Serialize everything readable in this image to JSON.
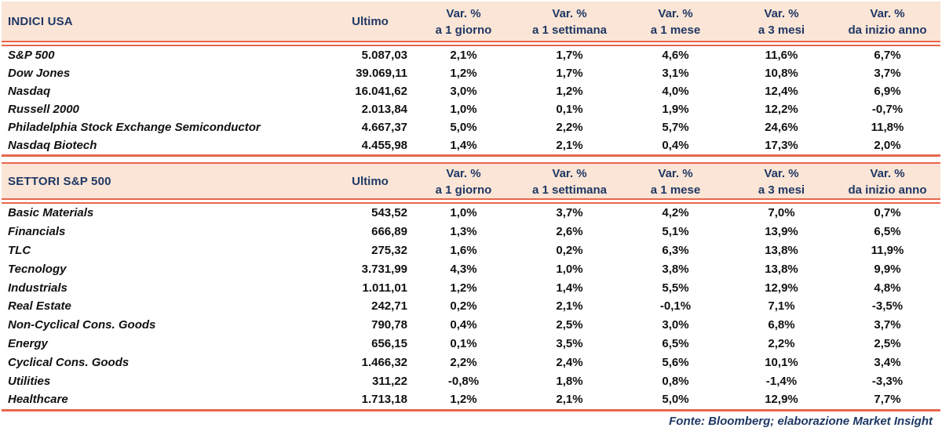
{
  "theme": {
    "accent_line_color": "#e8674c",
    "header_bg_color": "#fbe5d6",
    "header_text_color": "#1f3864",
    "body_text_color": "#111111"
  },
  "columns": {
    "ultimo": "Ultimo",
    "var_groups": [
      {
        "l1": "Var. %",
        "l2": "a 1 giorno"
      },
      {
        "l1": "Var. %",
        "l2": "a 1 settimana"
      },
      {
        "l1": "Var. %",
        "l2": "a 1 mese"
      },
      {
        "l1": "Var. %",
        "l2": "a 3 mesi"
      },
      {
        "l1": "Var. %",
        "l2": "da inizio anno"
      }
    ]
  },
  "tables": [
    {
      "title": "INDICI USA",
      "rows": [
        {
          "name": "S&P 500",
          "ultimo": "5.087,03",
          "vars": [
            "2,1%",
            "1,7%",
            "4,6%",
            "11,6%",
            "6,7%"
          ]
        },
        {
          "name": "Dow Jones",
          "ultimo": "39.069,11",
          "vars": [
            "1,2%",
            "1,7%",
            "3,1%",
            "10,8%",
            "3,7%"
          ]
        },
        {
          "name": "Nasdaq",
          "ultimo": "16.041,62",
          "vars": [
            "3,0%",
            "1,2%",
            "4,0%",
            "12,4%",
            "6,9%"
          ]
        },
        {
          "name": "Russell 2000",
          "ultimo": "2.013,84",
          "vars": [
            "1,0%",
            "0,1%",
            "1,9%",
            "12,2%",
            "-0,7%"
          ]
        },
        {
          "name": "Philadelphia Stock Exchange Semiconductor",
          "ultimo": "4.667,37",
          "vars": [
            "5,0%",
            "2,2%",
            "5,7%",
            "24,6%",
            "11,8%"
          ]
        },
        {
          "name": "Nasdaq Biotech",
          "ultimo": "4.455,98",
          "vars": [
            "1,4%",
            "2,1%",
            "0,4%",
            "17,3%",
            "2,0%"
          ]
        }
      ]
    },
    {
      "title": "SETTORI S&P 500",
      "rows": [
        {
          "name": "Basic Materials",
          "ultimo": "543,52",
          "vars": [
            "1,0%",
            "3,7%",
            "4,2%",
            "7,0%",
            "0,7%"
          ]
        },
        {
          "name": "Financials",
          "ultimo": "666,89",
          "vars": [
            "1,3%",
            "2,6%",
            "5,1%",
            "13,9%",
            "6,5%"
          ]
        },
        {
          "name": "TLC",
          "ultimo": "275,32",
          "vars": [
            "1,6%",
            "0,2%",
            "6,3%",
            "13,8%",
            "11,9%"
          ]
        },
        {
          "name": "Tecnology",
          "ultimo": "3.731,99",
          "vars": [
            "4,3%",
            "1,0%",
            "3,8%",
            "13,8%",
            "9,9%"
          ]
        },
        {
          "name": "Industrials",
          "ultimo": "1.011,01",
          "vars": [
            "1,2%",
            "1,4%",
            "5,5%",
            "12,9%",
            "4,8%"
          ]
        },
        {
          "name": "Real Estate",
          "ultimo": "242,71",
          "vars": [
            "0,2%",
            "2,1%",
            "-0,1%",
            "7,1%",
            "-3,5%"
          ]
        },
        {
          "name": "Non-Cyclical Cons. Goods",
          "ultimo": "790,78",
          "vars": [
            "0,4%",
            "2,5%",
            "3,0%",
            "6,8%",
            "3,7%"
          ]
        },
        {
          "name": "Energy",
          "ultimo": "656,15",
          "vars": [
            "0,1%",
            "3,5%",
            "6,5%",
            "2,2%",
            "2,5%"
          ]
        },
        {
          "name": "Cyclical Cons. Goods",
          "ultimo": "1.466,32",
          "vars": [
            "2,2%",
            "2,4%",
            "5,6%",
            "10,1%",
            "3,4%"
          ]
        },
        {
          "name": "Utilities",
          "ultimo": "311,22",
          "vars": [
            "-0,8%",
            "1,8%",
            "0,8%",
            "-1,4%",
            "-3,3%"
          ]
        },
        {
          "name": "Healthcare",
          "ultimo": "1.713,18",
          "vars": [
            "1,2%",
            "2,1%",
            "5,0%",
            "12,9%",
            "7,7%"
          ]
        }
      ]
    }
  ],
  "footer": {
    "source": "Fonte: Bloomberg; elaborazione Market Insight"
  },
  "chart_data": [
    {
      "type": "table",
      "title": "INDICI USA",
      "columns": [
        "Ultimo",
        "Var. % a 1 giorno",
        "Var. % a 1 settimana",
        "Var. % a 1 mese",
        "Var. % a 3 mesi",
        "Var. % da inizio anno"
      ],
      "rows": [
        [
          "S&P 500",
          "5.087,03",
          "2,1%",
          "1,7%",
          "4,6%",
          "11,6%",
          "6,7%"
        ],
        [
          "Dow Jones",
          "39.069,11",
          "1,2%",
          "1,7%",
          "3,1%",
          "10,8%",
          "3,7%"
        ],
        [
          "Nasdaq",
          "16.041,62",
          "3,0%",
          "1,2%",
          "4,0%",
          "12,4%",
          "6,9%"
        ],
        [
          "Russell 2000",
          "2.013,84",
          "1,0%",
          "0,1%",
          "1,9%",
          "12,2%",
          "-0,7%"
        ],
        [
          "Philadelphia Stock Exchange Semiconductor",
          "4.667,37",
          "5,0%",
          "2,2%",
          "5,7%",
          "24,6%",
          "11,8%"
        ],
        [
          "Nasdaq Biotech",
          "4.455,98",
          "1,4%",
          "2,1%",
          "0,4%",
          "17,3%",
          "2,0%"
        ]
      ]
    },
    {
      "type": "table",
      "title": "SETTORI S&P 500",
      "columns": [
        "Ultimo",
        "Var. % a 1 giorno",
        "Var. % a 1 settimana",
        "Var. % a 1 mese",
        "Var. % a 3 mesi",
        "Var. % da inizio anno"
      ],
      "rows": [
        [
          "Basic Materials",
          "543,52",
          "1,0%",
          "3,7%",
          "4,2%",
          "7,0%",
          "0,7%"
        ],
        [
          "Financials",
          "666,89",
          "1,3%",
          "2,6%",
          "5,1%",
          "13,9%",
          "6,5%"
        ],
        [
          "TLC",
          "275,32",
          "1,6%",
          "0,2%",
          "6,3%",
          "13,8%",
          "11,9%"
        ],
        [
          "Tecnology",
          "3.731,99",
          "4,3%",
          "1,0%",
          "3,8%",
          "13,8%",
          "9,9%"
        ],
        [
          "Industrials",
          "1.011,01",
          "1,2%",
          "1,4%",
          "5,5%",
          "12,9%",
          "4,8%"
        ],
        [
          "Real Estate",
          "242,71",
          "0,2%",
          "2,1%",
          "-0,1%",
          "7,1%",
          "-3,5%"
        ],
        [
          "Non-Cyclical Cons. Goods",
          "790,78",
          "0,4%",
          "2,5%",
          "3,0%",
          "6,8%",
          "3,7%"
        ],
        [
          "Energy",
          "656,15",
          "0,1%",
          "3,5%",
          "6,5%",
          "2,2%",
          "2,5%"
        ],
        [
          "Cyclical Cons. Goods",
          "1.466,32",
          "2,2%",
          "2,4%",
          "5,6%",
          "10,1%",
          "3,4%"
        ],
        [
          "Utilities",
          "311,22",
          "-0,8%",
          "1,8%",
          "0,8%",
          "-1,4%",
          "-3,3%"
        ],
        [
          "Healthcare",
          "1.713,18",
          "1,2%",
          "2,1%",
          "5,0%",
          "12,9%",
          "7,7%"
        ]
      ]
    }
  ]
}
